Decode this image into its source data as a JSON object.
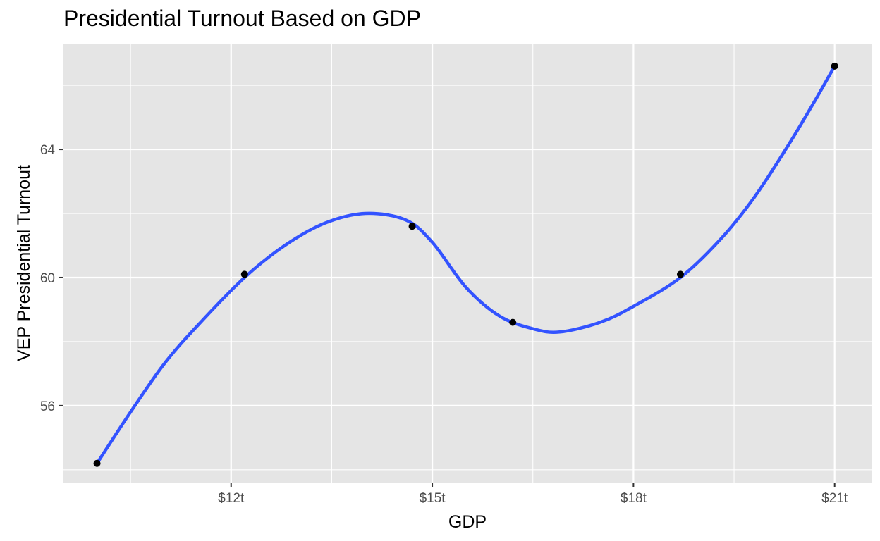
{
  "chart_data": {
    "type": "line",
    "title": "Presidential Turnout Based on GDP",
    "xlabel": "GDP",
    "ylabel": "VEP Presidential Turnout",
    "xlim": [
      9.5,
      21.55
    ],
    "ylim": [
      53.6,
      67.3
    ],
    "x_ticks": [
      {
        "value": 12,
        "label": "$12t"
      },
      {
        "value": 15,
        "label": "$15t"
      },
      {
        "value": 18,
        "label": "$18t"
      },
      {
        "value": 21,
        "label": "$21t"
      }
    ],
    "y_ticks": [
      {
        "value": 56,
        "label": "56"
      },
      {
        "value": 60,
        "label": "60"
      },
      {
        "value": 64,
        "label": "64"
      }
    ],
    "x_minor": [
      10.5,
      13.5,
      16.5,
      19.5
    ],
    "y_minor": [
      54,
      58,
      62,
      66
    ],
    "grid": true,
    "points": [
      {
        "x": 10.0,
        "y": 54.2
      },
      {
        "x": 12.2,
        "y": 60.1
      },
      {
        "x": 14.7,
        "y": 61.6
      },
      {
        "x": 16.2,
        "y": 58.6
      },
      {
        "x": 18.7,
        "y": 60.1
      },
      {
        "x": 21.0,
        "y": 66.6
      }
    ],
    "smooth_curve": [
      {
        "x": 10.0,
        "y": 54.2
      },
      {
        "x": 10.5,
        "y": 55.8
      },
      {
        "x": 11.0,
        "y": 57.3
      },
      {
        "x": 11.5,
        "y": 58.5
      },
      {
        "x": 12.2,
        "y": 60.0
      },
      {
        "x": 12.8,
        "y": 61.0
      },
      {
        "x": 13.4,
        "y": 61.7
      },
      {
        "x": 14.0,
        "y": 62.0
      },
      {
        "x": 14.6,
        "y": 61.8
      },
      {
        "x": 15.0,
        "y": 61.1
      },
      {
        "x": 15.5,
        "y": 59.7
      },
      {
        "x": 16.0,
        "y": 58.8
      },
      {
        "x": 16.5,
        "y": 58.4
      },
      {
        "x": 16.9,
        "y": 58.3
      },
      {
        "x": 17.5,
        "y": 58.6
      },
      {
        "x": 18.0,
        "y": 59.1
      },
      {
        "x": 18.7,
        "y": 60.0
      },
      {
        "x": 19.3,
        "y": 61.2
      },
      {
        "x": 19.8,
        "y": 62.5
      },
      {
        "x": 20.3,
        "y": 64.1
      },
      {
        "x": 20.7,
        "y": 65.5
      },
      {
        "x": 21.0,
        "y": 66.6
      }
    ],
    "colors": {
      "panel": "#e5e5e5",
      "grid": "#ffffff",
      "line": "#3353ff",
      "point": "#000000"
    }
  }
}
